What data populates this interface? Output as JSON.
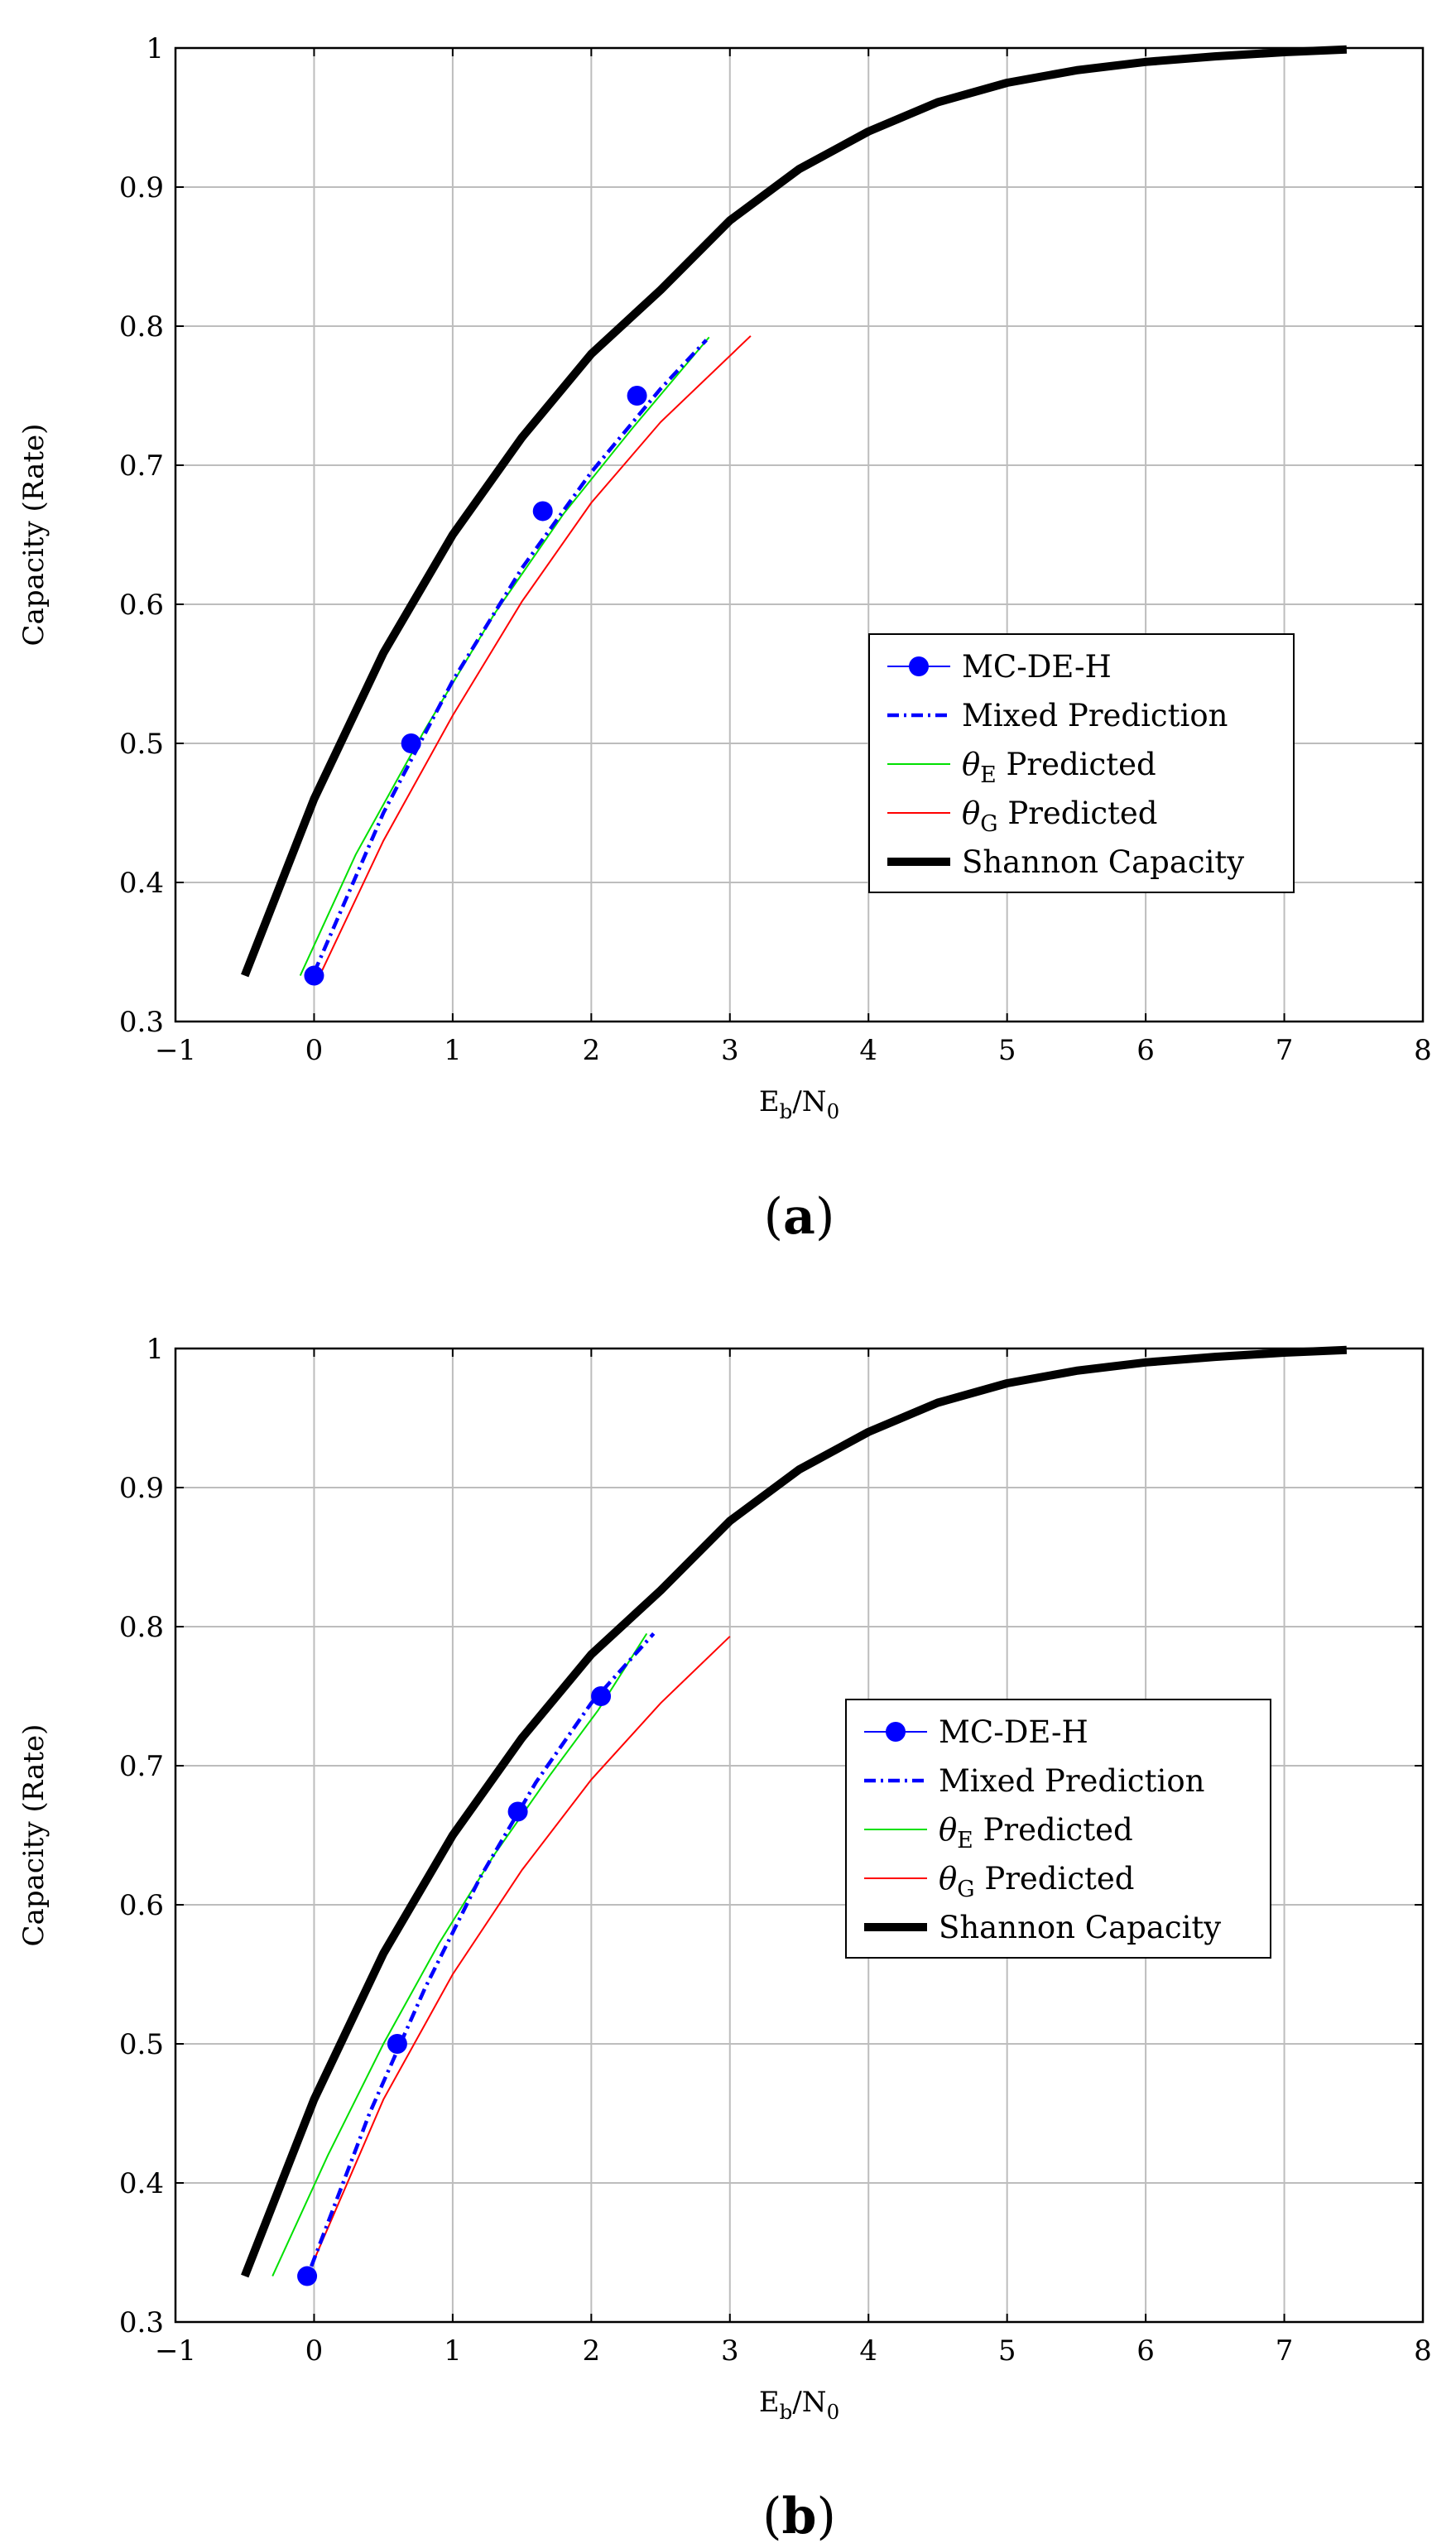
{
  "chart_data": [
    {
      "type": "line",
      "panel": "a",
      "caption": "(a)",
      "xlabel": "Eb/N0",
      "ylabel": "Capacity (Rate)",
      "xlim": [
        -1,
        8
      ],
      "ylim": [
        0.3,
        1
      ],
      "xticks": [
        "−1",
        "0",
        "1",
        "2",
        "3",
        "4",
        "5",
        "6",
        "7",
        "8"
      ],
      "yticks": [
        "0.3",
        "0.4",
        "0.5",
        "0.6",
        "0.7",
        "0.8",
        "0.9",
        "1"
      ],
      "grid": true,
      "legend_position": "lower-right",
      "series": [
        {
          "name": "MC-DE-H",
          "style": "markers",
          "color": "#0000ff",
          "x": [
            0.0,
            0.7,
            1.65,
            2.33
          ],
          "y": [
            0.333,
            0.5,
            0.667,
            0.75
          ]
        },
        {
          "name": "Mixed Prediction",
          "style": "dashdot",
          "color": "#0000ff",
          "x": [
            0.0,
            0.5,
            1.0,
            1.5,
            2.0,
            2.5,
            2.83
          ],
          "y": [
            0.335,
            0.45,
            0.545,
            0.626,
            0.695,
            0.755,
            0.79
          ]
        },
        {
          "name": "θE Predicted",
          "style": "thin",
          "color": "#00e000",
          "x": [
            -0.1,
            0.3,
            0.8,
            1.3,
            1.8,
            2.3,
            2.85
          ],
          "y": [
            0.333,
            0.42,
            0.51,
            0.593,
            0.665,
            0.727,
            0.792
          ]
        },
        {
          "name": "θG Predicted",
          "style": "thin",
          "color": "#ff0000",
          "x": [
            0.05,
            0.5,
            1.0,
            1.5,
            2.0,
            2.5,
            3.15
          ],
          "y": [
            0.335,
            0.43,
            0.52,
            0.602,
            0.673,
            0.731,
            0.793
          ]
        },
        {
          "name": "Shannon Capacity",
          "style": "thick",
          "color": "#000000",
          "x": [
            -0.5,
            0.0,
            0.5,
            1.0,
            1.5,
            2.0,
            2.5,
            3.0,
            3.5,
            4.0,
            4.5,
            5.0,
            5.5,
            6.0,
            6.5,
            7.0,
            7.45
          ],
          "y": [
            0.333,
            0.46,
            0.565,
            0.65,
            0.72,
            0.78,
            0.826,
            0.876,
            0.913,
            0.94,
            0.961,
            0.975,
            0.984,
            0.99,
            0.994,
            0.997,
            0.999
          ]
        }
      ]
    },
    {
      "type": "line",
      "panel": "b",
      "caption": "(b)",
      "xlabel": "Eb/N0",
      "ylabel": "Capacity (Rate)",
      "xlim": [
        -1,
        8
      ],
      "ylim": [
        0.3,
        1
      ],
      "xticks": [
        "−1",
        "0",
        "1",
        "2",
        "3",
        "4",
        "5",
        "6",
        "7",
        "8"
      ],
      "yticks": [
        "0.3",
        "0.4",
        "0.5",
        "0.6",
        "0.7",
        "0.8",
        "0.9",
        "1"
      ],
      "grid": true,
      "legend_position": "right",
      "series": [
        {
          "name": "MC-DE-H",
          "style": "markers",
          "color": "#0000ff",
          "x": [
            -0.05,
            0.6,
            1.47,
            2.07
          ],
          "y": [
            0.333,
            0.5,
            0.667,
            0.75
          ]
        },
        {
          "name": "Mixed Prediction",
          "style": "dashdot",
          "color": "#0000ff",
          "x": [
            -0.02,
            0.4,
            0.8,
            1.2,
            1.6,
            2.0,
            2.45
          ],
          "y": [
            0.34,
            0.45,
            0.54,
            0.62,
            0.688,
            0.745,
            0.795
          ]
        },
        {
          "name": "θE Predicted",
          "style": "thin",
          "color": "#00e000",
          "x": [
            -0.3,
            0.1,
            0.5,
            0.9,
            1.3,
            1.7,
            2.05,
            2.4
          ],
          "y": [
            0.333,
            0.42,
            0.5,
            0.572,
            0.636,
            0.693,
            0.74,
            0.795
          ]
        },
        {
          "name": "θG Predicted",
          "style": "thin",
          "color": "#ff0000",
          "x": [
            -0.02,
            0.5,
            1.0,
            1.5,
            2.0,
            2.5,
            3.0
          ],
          "y": [
            0.34,
            0.46,
            0.55,
            0.625,
            0.69,
            0.745,
            0.793
          ]
        },
        {
          "name": "Shannon Capacity",
          "style": "thick",
          "color": "#000000",
          "x": [
            -0.5,
            0.0,
            0.5,
            1.0,
            1.5,
            2.0,
            2.5,
            3.0,
            3.5,
            4.0,
            4.5,
            5.0,
            5.5,
            6.0,
            6.5,
            7.0,
            7.45
          ],
          "y": [
            0.333,
            0.46,
            0.565,
            0.65,
            0.72,
            0.78,
            0.826,
            0.876,
            0.913,
            0.94,
            0.961,
            0.975,
            0.984,
            0.99,
            0.994,
            0.997,
            0.999
          ]
        }
      ]
    }
  ]
}
